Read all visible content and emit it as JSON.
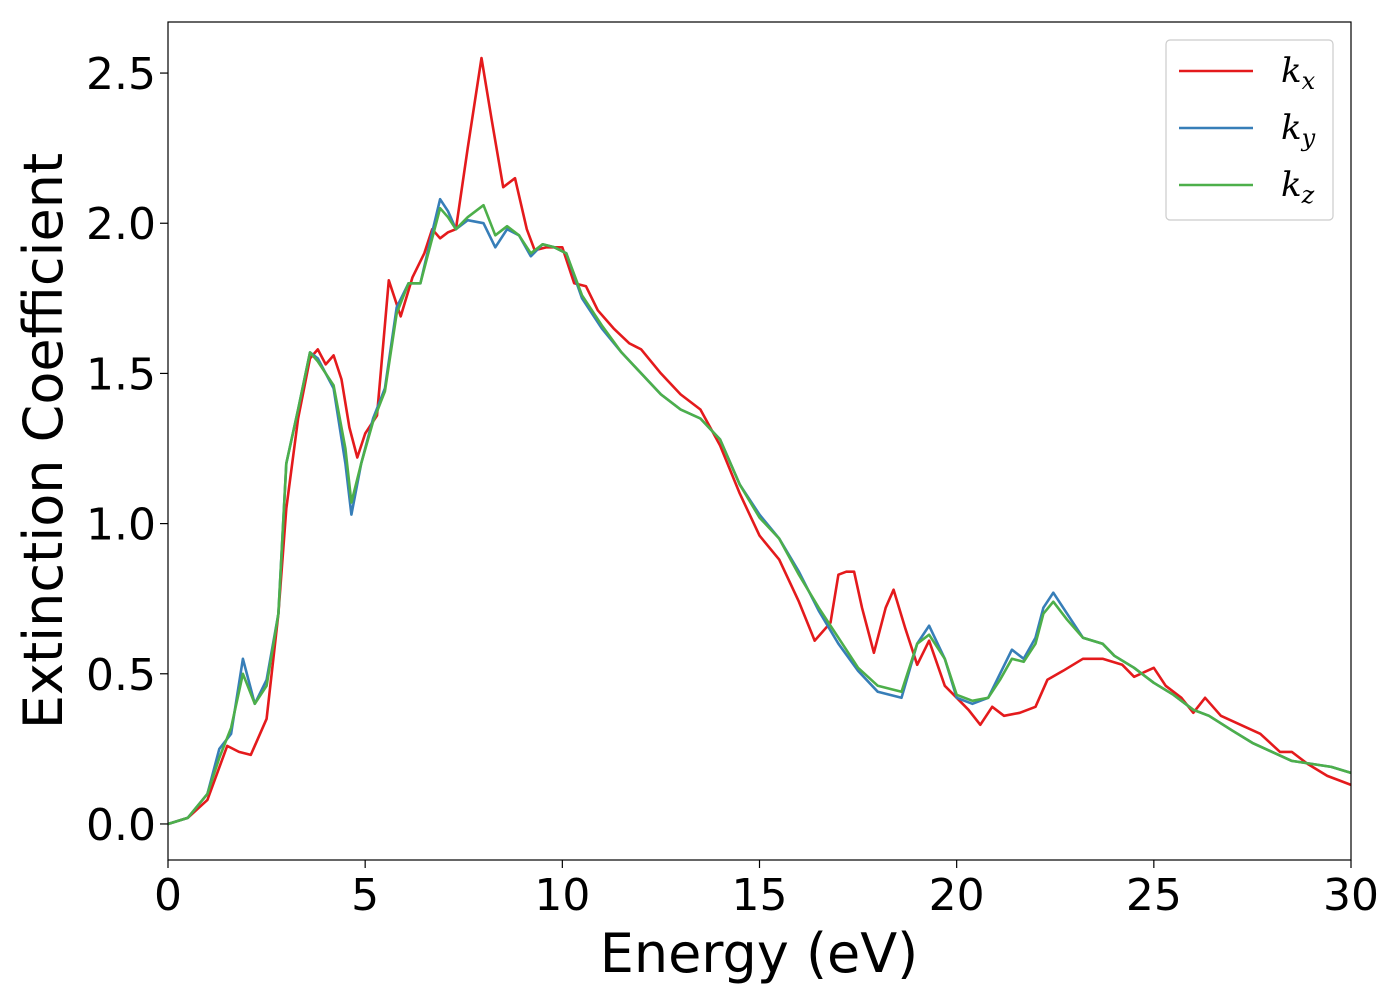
{
  "chart_data": {
    "type": "line",
    "xlabel": "Energy (eV)",
    "ylabel": "Extinction Coefficient",
    "xlim": [
      0,
      30
    ],
    "ylim": [
      -0.12,
      2.67
    ],
    "xticks": [
      0,
      5,
      10,
      15,
      20,
      25,
      30
    ],
    "yticks": [
      0.0,
      0.5,
      1.0,
      1.5,
      2.0,
      2.5
    ],
    "xtick_labels": [
      "0",
      "5",
      "10",
      "15",
      "20",
      "25",
      "30"
    ],
    "ytick_labels": [
      "0.0",
      "0.5",
      "1.0",
      "1.5",
      "2.0",
      "2.5"
    ],
    "grid": false,
    "legend_position": "top-right",
    "series": [
      {
        "name": "k_x",
        "label_main": "k",
        "label_sub": "x",
        "color": "#e41a1c",
        "points": [
          [
            0,
            0.0
          ],
          [
            0.5,
            0.02
          ],
          [
            1.0,
            0.08
          ],
          [
            1.5,
            0.26
          ],
          [
            1.8,
            0.24
          ],
          [
            2.1,
            0.23
          ],
          [
            2.5,
            0.35
          ],
          [
            2.8,
            0.7
          ],
          [
            3.0,
            1.05
          ],
          [
            3.3,
            1.35
          ],
          [
            3.6,
            1.55
          ],
          [
            3.8,
            1.58
          ],
          [
            4.0,
            1.53
          ],
          [
            4.2,
            1.56
          ],
          [
            4.4,
            1.48
          ],
          [
            4.6,
            1.32
          ],
          [
            4.8,
            1.22
          ],
          [
            5.0,
            1.3
          ],
          [
            5.3,
            1.36
          ],
          [
            5.6,
            1.81
          ],
          [
            5.9,
            1.69
          ],
          [
            6.2,
            1.82
          ],
          [
            6.5,
            1.9
          ],
          [
            6.7,
            1.98
          ],
          [
            6.9,
            1.95
          ],
          [
            7.1,
            1.97
          ],
          [
            7.3,
            1.98
          ],
          [
            7.6,
            2.25
          ],
          [
            7.95,
            2.55
          ],
          [
            8.2,
            2.35
          ],
          [
            8.5,
            2.12
          ],
          [
            8.8,
            2.15
          ],
          [
            9.1,
            1.98
          ],
          [
            9.3,
            1.91
          ],
          [
            9.6,
            1.92
          ],
          [
            10.0,
            1.92
          ],
          [
            10.3,
            1.8
          ],
          [
            10.6,
            1.79
          ],
          [
            10.9,
            1.71
          ],
          [
            11.3,
            1.65
          ],
          [
            11.7,
            1.6
          ],
          [
            12.0,
            1.58
          ],
          [
            12.5,
            1.5
          ],
          [
            13.0,
            1.43
          ],
          [
            13.5,
            1.38
          ],
          [
            14.0,
            1.26
          ],
          [
            14.5,
            1.1
          ],
          [
            15.0,
            0.96
          ],
          [
            15.5,
            0.88
          ],
          [
            16.0,
            0.74
          ],
          [
            16.4,
            0.61
          ],
          [
            16.8,
            0.67
          ],
          [
            17.0,
            0.83
          ],
          [
            17.2,
            0.84
          ],
          [
            17.4,
            0.84
          ],
          [
            17.6,
            0.72
          ],
          [
            17.9,
            0.57
          ],
          [
            18.2,
            0.72
          ],
          [
            18.4,
            0.78
          ],
          [
            18.7,
            0.65
          ],
          [
            19.0,
            0.53
          ],
          [
            19.3,
            0.61
          ],
          [
            19.7,
            0.46
          ],
          [
            20.0,
            0.42
          ],
          [
            20.3,
            0.38
          ],
          [
            20.6,
            0.33
          ],
          [
            20.9,
            0.39
          ],
          [
            21.2,
            0.36
          ],
          [
            21.6,
            0.37
          ],
          [
            22.0,
            0.39
          ],
          [
            22.3,
            0.48
          ],
          [
            22.7,
            0.51
          ],
          [
            23.2,
            0.55
          ],
          [
            23.7,
            0.55
          ],
          [
            24.2,
            0.53
          ],
          [
            24.5,
            0.49
          ],
          [
            25.0,
            0.52
          ],
          [
            25.3,
            0.46
          ],
          [
            25.7,
            0.42
          ],
          [
            26.0,
            0.37
          ],
          [
            26.3,
            0.42
          ],
          [
            26.7,
            0.36
          ],
          [
            27.2,
            0.33
          ],
          [
            27.7,
            0.3
          ],
          [
            28.2,
            0.24
          ],
          [
            28.5,
            0.24
          ],
          [
            28.9,
            0.2
          ],
          [
            29.4,
            0.16
          ],
          [
            30.0,
            0.13
          ]
        ]
      },
      {
        "name": "k_y",
        "label_main": "k",
        "label_sub": "y",
        "color": "#377eb8",
        "points": [
          [
            0,
            0.0
          ],
          [
            0.5,
            0.02
          ],
          [
            1.0,
            0.1
          ],
          [
            1.3,
            0.25
          ],
          [
            1.6,
            0.3
          ],
          [
            1.9,
            0.55
          ],
          [
            2.2,
            0.4
          ],
          [
            2.5,
            0.48
          ],
          [
            2.8,
            0.7
          ],
          [
            3.0,
            1.2
          ],
          [
            3.3,
            1.38
          ],
          [
            3.6,
            1.57
          ],
          [
            3.8,
            1.55
          ],
          [
            4.2,
            1.45
          ],
          [
            4.5,
            1.2
          ],
          [
            4.65,
            1.03
          ],
          [
            4.9,
            1.2
          ],
          [
            5.2,
            1.35
          ],
          [
            5.5,
            1.45
          ],
          [
            5.8,
            1.72
          ],
          [
            6.1,
            1.8
          ],
          [
            6.4,
            1.8
          ],
          [
            6.7,
            1.97
          ],
          [
            6.9,
            2.08
          ],
          [
            7.1,
            2.04
          ],
          [
            7.3,
            1.98
          ],
          [
            7.6,
            2.01
          ],
          [
            8.0,
            2.0
          ],
          [
            8.3,
            1.92
          ],
          [
            8.6,
            1.98
          ],
          [
            8.9,
            1.96
          ],
          [
            9.2,
            1.89
          ],
          [
            9.5,
            1.93
          ],
          [
            9.8,
            1.92
          ],
          [
            10.1,
            1.9
          ],
          [
            10.5,
            1.75
          ],
          [
            11.0,
            1.65
          ],
          [
            11.5,
            1.57
          ],
          [
            12.0,
            1.5
          ],
          [
            12.5,
            1.43
          ],
          [
            13.0,
            1.38
          ],
          [
            13.5,
            1.35
          ],
          [
            14.0,
            1.28
          ],
          [
            14.5,
            1.13
          ],
          [
            15.0,
            1.03
          ],
          [
            15.5,
            0.95
          ],
          [
            16.0,
            0.84
          ],
          [
            16.5,
            0.71
          ],
          [
            17.0,
            0.6
          ],
          [
            17.5,
            0.51
          ],
          [
            18.0,
            0.44
          ],
          [
            18.3,
            0.43
          ],
          [
            18.6,
            0.42
          ],
          [
            19.0,
            0.6
          ],
          [
            19.3,
            0.66
          ],
          [
            19.7,
            0.55
          ],
          [
            20.0,
            0.42
          ],
          [
            20.4,
            0.4
          ],
          [
            20.8,
            0.42
          ],
          [
            21.1,
            0.5
          ],
          [
            21.4,
            0.58
          ],
          [
            21.7,
            0.55
          ],
          [
            22.0,
            0.62
          ],
          [
            22.2,
            0.72
          ],
          [
            22.45,
            0.77
          ],
          [
            22.8,
            0.7
          ],
          [
            23.2,
            0.62
          ],
          [
            23.7,
            0.6
          ],
          [
            24.0,
            0.56
          ],
          [
            24.5,
            0.52
          ],
          [
            25.0,
            0.47
          ],
          [
            25.5,
            0.43
          ],
          [
            26.0,
            0.38
          ],
          [
            26.4,
            0.36
          ],
          [
            27.0,
            0.31
          ],
          [
            27.5,
            0.27
          ],
          [
            28.0,
            0.24
          ],
          [
            28.5,
            0.21
          ],
          [
            29.0,
            0.2
          ],
          [
            29.5,
            0.19
          ],
          [
            30.0,
            0.17
          ]
        ]
      },
      {
        "name": "k_z",
        "label_main": "k",
        "label_sub": "z",
        "color": "#4daf4a",
        "points": [
          [
            0,
            0.0
          ],
          [
            0.5,
            0.02
          ],
          [
            1.0,
            0.1
          ],
          [
            1.3,
            0.22
          ],
          [
            1.6,
            0.32
          ],
          [
            1.9,
            0.5
          ],
          [
            2.2,
            0.4
          ],
          [
            2.5,
            0.46
          ],
          [
            2.8,
            0.7
          ],
          [
            3.0,
            1.2
          ],
          [
            3.3,
            1.38
          ],
          [
            3.6,
            1.57
          ],
          [
            3.8,
            1.54
          ],
          [
            4.2,
            1.46
          ],
          [
            4.5,
            1.25
          ],
          [
            4.65,
            1.07
          ],
          [
            4.9,
            1.2
          ],
          [
            5.2,
            1.34
          ],
          [
            5.5,
            1.44
          ],
          [
            5.8,
            1.7
          ],
          [
            6.1,
            1.8
          ],
          [
            6.4,
            1.8
          ],
          [
            6.7,
            1.95
          ],
          [
            6.9,
            2.05
          ],
          [
            7.1,
            2.02
          ],
          [
            7.3,
            1.98
          ],
          [
            7.6,
            2.02
          ],
          [
            8.0,
            2.06
          ],
          [
            8.3,
            1.96
          ],
          [
            8.6,
            1.99
          ],
          [
            8.9,
            1.96
          ],
          [
            9.2,
            1.9
          ],
          [
            9.5,
            1.93
          ],
          [
            9.8,
            1.92
          ],
          [
            10.1,
            1.9
          ],
          [
            10.5,
            1.76
          ],
          [
            11.0,
            1.66
          ],
          [
            11.5,
            1.57
          ],
          [
            12.0,
            1.5
          ],
          [
            12.5,
            1.43
          ],
          [
            13.0,
            1.38
          ],
          [
            13.5,
            1.35
          ],
          [
            14.0,
            1.28
          ],
          [
            14.5,
            1.13
          ],
          [
            15.0,
            1.02
          ],
          [
            15.5,
            0.95
          ],
          [
            16.0,
            0.83
          ],
          [
            16.5,
            0.72
          ],
          [
            17.0,
            0.62
          ],
          [
            17.5,
            0.52
          ],
          [
            18.0,
            0.46
          ],
          [
            18.3,
            0.45
          ],
          [
            18.6,
            0.44
          ],
          [
            19.0,
            0.6
          ],
          [
            19.3,
            0.63
          ],
          [
            19.7,
            0.55
          ],
          [
            20.0,
            0.43
          ],
          [
            20.4,
            0.41
          ],
          [
            20.8,
            0.42
          ],
          [
            21.1,
            0.48
          ],
          [
            21.4,
            0.55
          ],
          [
            21.7,
            0.54
          ],
          [
            22.0,
            0.6
          ],
          [
            22.2,
            0.7
          ],
          [
            22.45,
            0.74
          ],
          [
            22.8,
            0.68
          ],
          [
            23.2,
            0.62
          ],
          [
            23.7,
            0.6
          ],
          [
            24.0,
            0.56
          ],
          [
            24.5,
            0.52
          ],
          [
            25.0,
            0.47
          ],
          [
            25.5,
            0.43
          ],
          [
            26.0,
            0.38
          ],
          [
            26.4,
            0.36
          ],
          [
            27.0,
            0.31
          ],
          [
            27.5,
            0.27
          ],
          [
            28.0,
            0.24
          ],
          [
            28.5,
            0.21
          ],
          [
            29.0,
            0.2
          ],
          [
            29.5,
            0.19
          ],
          [
            30.0,
            0.17
          ]
        ]
      }
    ]
  }
}
